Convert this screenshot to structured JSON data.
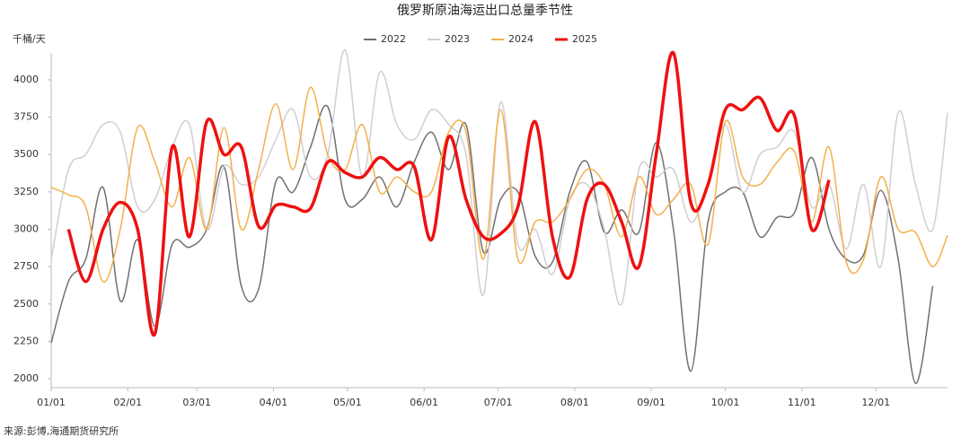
{
  "chart_data": {
    "type": "line",
    "title": "俄罗斯原油海运出口总量季节性",
    "y_label": "千桶/天",
    "source": "来源:彭博,海通期货研究所",
    "x": [
      1,
      8,
      15,
      22,
      29,
      36,
      43,
      50,
      57,
      64,
      71,
      78,
      85,
      92,
      99,
      106,
      113,
      120,
      127,
      134,
      141,
      148,
      155,
      162,
      169,
      176,
      183,
      190,
      197,
      204,
      211,
      218,
      225,
      232,
      239,
      246,
      253,
      260,
      267,
      274,
      281,
      288,
      295,
      302,
      309,
      316,
      323,
      330,
      337,
      344,
      351,
      358,
      364
    ],
    "xlim": [
      1,
      364
    ],
    "xticks": [
      {
        "value": 1,
        "label": "01/01"
      },
      {
        "value": 32,
        "label": "02/01"
      },
      {
        "value": 60,
        "label": "03/01"
      },
      {
        "value": 91,
        "label": "04/01"
      },
      {
        "value": 121,
        "label": "05/01"
      },
      {
        "value": 152,
        "label": "06/01"
      },
      {
        "value": 182,
        "label": "07/01"
      },
      {
        "value": 213,
        "label": "08/01"
      },
      {
        "value": 244,
        "label": "09/01"
      },
      {
        "value": 274,
        "label": "10/01"
      },
      {
        "value": 305,
        "label": "11/01"
      },
      {
        "value": 335,
        "label": "12/01"
      }
    ],
    "ylim": [
      1940,
      4180
    ],
    "yticks": [
      2000,
      2250,
      2500,
      2750,
      3000,
      3250,
      3500,
      3750,
      4000
    ],
    "legend": "top",
    "series": [
      {
        "name": "2022",
        "color": "#707070",
        "width": 1.5,
        "values": [
          2240,
          2650,
          2800,
          3280,
          2520,
          2930,
          2350,
          2900,
          2880,
          3000,
          3420,
          2620,
          2600,
          3320,
          3250,
          3550,
          3820,
          3200,
          3200,
          3350,
          3150,
          3450,
          3650,
          3400,
          3700,
          2850,
          3200,
          3250,
          2820,
          2780,
          3250,
          3450,
          2980,
          3130,
          2980,
          3580,
          3000,
          2050,
          3050,
          3250,
          3250,
          2950,
          3080,
          3110,
          3480,
          3000,
          2800,
          2830,
          3260,
          2800,
          1970,
          2620,
          null
        ]
      },
      {
        "name": "2023",
        "color": "#cfcfcf",
        "width": 1.5,
        "values": [
          2800,
          3400,
          3500,
          3700,
          3650,
          3150,
          3200,
          3550,
          3700,
          3000,
          3420,
          3300,
          3350,
          3600,
          3800,
          3350,
          3500,
          4200,
          3350,
          4050,
          3700,
          3600,
          3800,
          3700,
          3500,
          2560,
          3850,
          2900,
          3000,
          2700,
          3200,
          3300,
          3000,
          2500,
          3400,
          3350,
          3400,
          3050,
          3300,
          3700,
          3250,
          3500,
          3550,
          3650,
          3150,
          3300,
          2870,
          3300,
          2750,
          3780,
          3300,
          3000,
          3780
        ]
      },
      {
        "name": "2024",
        "color": "#f3b04b",
        "width": 1.5,
        "values": [
          3280,
          3230,
          3150,
          2650,
          3000,
          3680,
          3450,
          3150,
          3480,
          3000,
          3680,
          3000,
          3400,
          3840,
          3400,
          3950,
          3500,
          3400,
          3700,
          3250,
          3350,
          3250,
          3250,
          3650,
          3650,
          2800,
          3800,
          2800,
          3050,
          3050,
          3200,
          3400,
          3300,
          2950,
          3350,
          3100,
          3200,
          3300,
          2900,
          3720,
          3350,
          3300,
          3450,
          3520,
          3050,
          3550,
          2780,
          2800,
          3350,
          3000,
          2980,
          2750,
          2960
        ]
      },
      {
        "name": "2025",
        "color": "#ee1111",
        "width": 3.5,
        "values": [
          null,
          3000,
          2650,
          3000,
          3180,
          3000,
          2300,
          3550,
          2950,
          3720,
          3500,
          3550,
          3020,
          3160,
          3150,
          3140,
          3450,
          3380,
          3350,
          3480,
          3400,
          3420,
          2930,
          3620,
          3200,
          2950,
          2970,
          3150,
          3720,
          2950,
          2680,
          3200,
          3300,
          3050,
          2750,
          3500,
          4180,
          3180,
          3300,
          3800,
          3800,
          3880,
          3660,
          3760,
          3000,
          3330,
          null,
          null,
          null,
          null,
          null,
          null,
          null
        ]
      }
    ]
  }
}
